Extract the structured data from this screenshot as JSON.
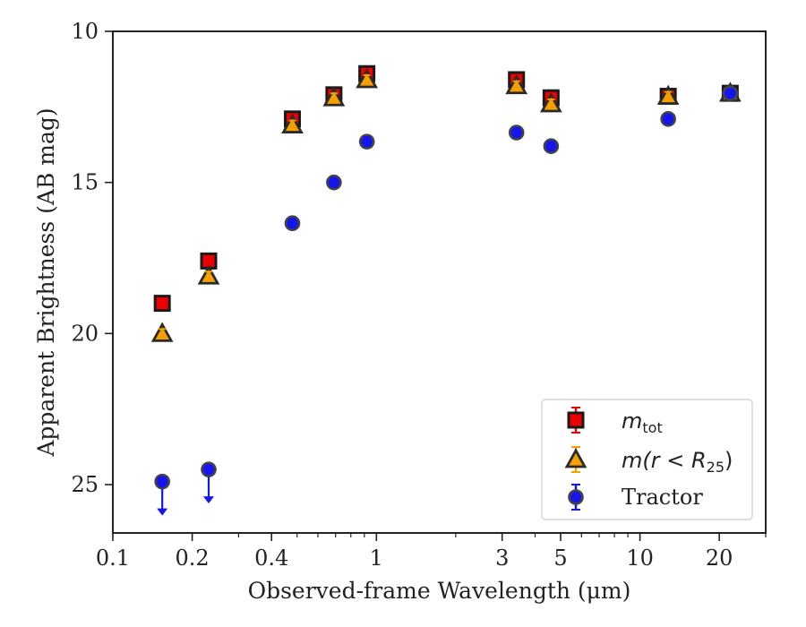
{
  "chart_data": {
    "type": "scatter",
    "xscale": "log",
    "yaxis_inverted": true,
    "xlim": [
      0.1,
      30
    ],
    "ylim": [
      10,
      26.6
    ],
    "xlabel": "Observed-frame Wavelength (μm)",
    "ylabel": "Apparent Brightness (AB mag)",
    "xticks": [
      {
        "value": 0.1,
        "label": "0.1"
      },
      {
        "value": 0.2,
        "label": "0.2"
      },
      {
        "value": 0.4,
        "label": "0.4"
      },
      {
        "value": 1,
        "label": "1"
      },
      {
        "value": 3,
        "label": "3"
      },
      {
        "value": 5,
        "label": "5"
      },
      {
        "value": 10,
        "label": "10"
      },
      {
        "value": 20,
        "label": "20"
      }
    ],
    "yticks": [
      {
        "value": 10,
        "label": "10"
      },
      {
        "value": 15,
        "label": "15"
      },
      {
        "value": 20,
        "label": "20"
      },
      {
        "value": 25,
        "label": "25"
      }
    ],
    "legend_position": "lower-right",
    "series": [
      {
        "name": "m_tot",
        "legend_main": "m",
        "legend_sub": "tot",
        "marker": "square",
        "color": "#ee0000",
        "x": [
          0.154,
          0.231,
          0.48,
          0.69,
          0.92,
          3.4,
          4.6,
          12.8,
          22.0
        ],
        "y": [
          19.0,
          17.6,
          12.9,
          12.1,
          11.4,
          11.6,
          12.2,
          12.15,
          12.05
        ]
      },
      {
        "name": "m(r < R25)",
        "legend_main": "m(r < R",
        "legend_sub": "25",
        "legend_tail": ")",
        "marker": "triangle",
        "color": "#f5a000",
        "x": [
          0.154,
          0.231,
          0.48,
          0.69,
          0.92,
          3.4,
          4.6,
          12.8,
          22.0
        ],
        "y": [
          20.0,
          18.1,
          13.1,
          12.2,
          11.6,
          11.8,
          12.4,
          12.15,
          12.05
        ]
      },
      {
        "name": "Tractor",
        "legend_main": "Tractor",
        "marker": "circle",
        "color": "#1515ee",
        "x": [
          0.154,
          0.231,
          0.48,
          0.69,
          0.92,
          3.4,
          4.6,
          12.8,
          22.0
        ],
        "y": [
          24.9,
          24.5,
          16.35,
          15.0,
          13.65,
          13.35,
          13.8,
          12.9,
          12.05
        ],
        "upper_limits": [
          true,
          true,
          false,
          false,
          false,
          false,
          false,
          false,
          false
        ]
      }
    ]
  }
}
